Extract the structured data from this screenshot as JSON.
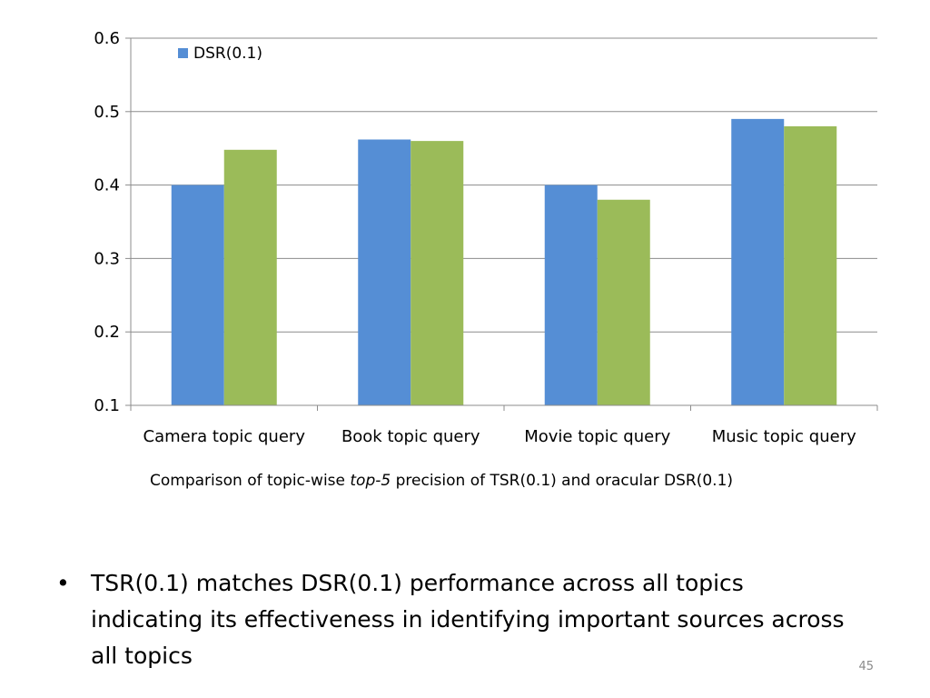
{
  "chart_data": {
    "type": "bar",
    "categories": [
      "Camera topic query",
      "Book topic query",
      "Movie topic query",
      "Music topic query"
    ],
    "series": [
      {
        "name": "DSR(0.1)",
        "values": [
          0.4,
          0.462,
          0.4,
          0.49
        ],
        "color": "#558ED5"
      },
      {
        "values": [
          0.448,
          0.46,
          0.38,
          0.48
        ],
        "color": "#9BBB59"
      }
    ],
    "ylim": [
      0.1,
      0.6
    ],
    "yticks": [
      "0.1",
      "0.2",
      "0.3",
      "0.4",
      "0.5",
      "0.6"
    ],
    "grid": true,
    "legend_position": "top-left"
  },
  "caption": {
    "before": "Comparison of topic-wise ",
    "emph": "top-5",
    "after": " precision of TSR(0.1) and oracular DSR(0.1)"
  },
  "bullets": [
    {
      "marker": "•",
      "text": "TSR(0.1) matches DSR(0.1) performance across all topics indicating its effectiveness in identifying important sources across all topics"
    }
  ],
  "slide_number": "45"
}
